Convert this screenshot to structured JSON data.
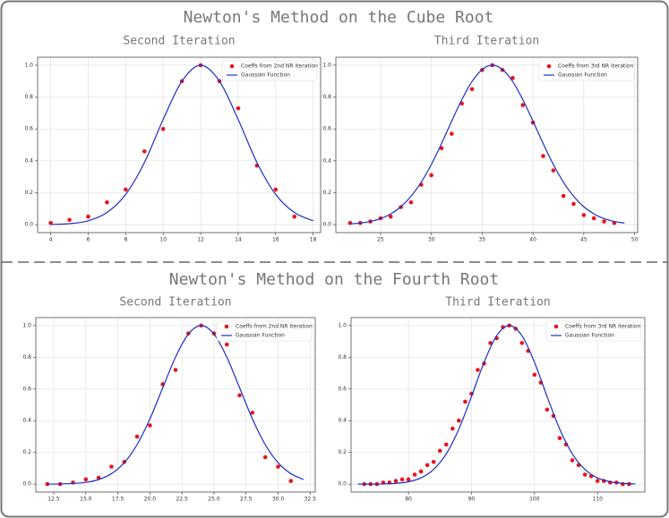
{
  "headings": [
    "Newton's Method on the Cube Root",
    "Newton's Method on the Fourth Root"
  ],
  "chart_data": [
    {
      "type": "scatter",
      "title": "Second Iteration",
      "xlim": [
        3.3,
        18.4
      ],
      "xticks": [
        4,
        6,
        8,
        10,
        12,
        14,
        16,
        18
      ],
      "ylim": [
        -0.05,
        1.05
      ],
      "yticks": [
        {
          "value": 0,
          "label": "0.0"
        },
        0.2,
        0.4,
        0.6,
        0.8,
        {
          "value": 1,
          "label": "1.0"
        }
      ],
      "grid": true,
      "legend": "upper right",
      "series": [
        {
          "name": "Coeffs from 2nd NR iteration",
          "color": "#e8141c",
          "type": "scatter",
          "x": [
            4,
            5,
            6,
            7,
            8,
            9,
            10,
            11,
            12,
            13,
            14,
            15,
            16,
            17
          ],
          "values": [
            0.01,
            0.03,
            0.05,
            0.14,
            0.22,
            0.46,
            0.6,
            0.9,
            1.0,
            0.9,
            0.73,
            0.37,
            0.22,
            0.05
          ]
        },
        {
          "name": "Gaussian Function",
          "color": "#1f2fc4",
          "type": "line",
          "x": [
            4,
            5,
            6,
            7,
            8,
            9,
            10,
            11,
            12,
            13,
            14,
            15,
            16,
            17,
            18
          ],
          "values": [
            0.001,
            0.006,
            0.024,
            0.076,
            0.19,
            0.39,
            0.66,
            0.9,
            1,
            0.9,
            0.66,
            0.39,
            0.19,
            0.076,
            0.024
          ]
        }
      ]
    },
    {
      "type": "scatter",
      "title": "Third Iteration",
      "xlim": [
        20.6,
        50.3
      ],
      "xticks": [
        25,
        30,
        35,
        40,
        45,
        50
      ],
      "ylim": [
        -0.05,
        1.05
      ],
      "yticks": [
        {
          "value": 0,
          "label": "0.0"
        },
        0.2,
        0.4,
        0.6,
        0.8,
        {
          "value": 1,
          "label": "1.0"
        }
      ],
      "grid": true,
      "legend": "upper right",
      "series": [
        {
          "name": "Coeffs from 3rd NR iteration",
          "color": "#e8141c",
          "type": "scatter",
          "x": [
            22,
            23,
            24,
            25,
            26,
            27,
            28,
            29,
            30,
            31,
            32,
            33,
            34,
            35,
            36,
            37,
            38,
            39,
            40,
            41,
            42,
            43,
            44,
            45,
            46,
            47,
            48
          ],
          "values": [
            0.01,
            0.01,
            0.02,
            0.04,
            0.05,
            0.11,
            0.14,
            0.25,
            0.31,
            0.48,
            0.57,
            0.76,
            0.85,
            0.97,
            1.0,
            0.97,
            0.92,
            0.75,
            0.64,
            0.43,
            0.34,
            0.18,
            0.13,
            0.06,
            0.04,
            0.02,
            0.01
          ]
        },
        {
          "name": "Gaussian Function",
          "color": "#1f2fc4",
          "type": "line",
          "x": [
            22,
            23,
            24,
            25,
            26,
            27,
            28,
            29,
            30,
            31,
            32,
            33,
            34,
            35,
            36,
            37,
            38,
            39,
            40,
            41,
            42,
            43,
            44,
            45,
            46,
            47,
            48,
            49
          ],
          "values": [
            0.005,
            0.01,
            0.02,
            0.038,
            0.067,
            0.112,
            0.178,
            0.266,
            0.378,
            0.509,
            0.649,
            0.784,
            0.898,
            0.973,
            1,
            0.973,
            0.898,
            0.784,
            0.649,
            0.509,
            0.378,
            0.266,
            0.178,
            0.112,
            0.067,
            0.038,
            0.02,
            0.01
          ]
        }
      ]
    },
    {
      "type": "scatter",
      "title": "Second Iteration",
      "xlim": [
        11.1,
        32.9
      ],
      "xticks": [
        12.5,
        {
          "value": 15,
          "label": "15.0"
        },
        17.5,
        {
          "value": 20,
          "label": "20.0"
        },
        22.5,
        {
          "value": 25,
          "label": "25.0"
        },
        27.5,
        {
          "value": 30,
          "label": "30.0"
        },
        32.5
      ],
      "ylim": [
        -0.05,
        1.05
      ],
      "yticks": [
        {
          "value": 0,
          "label": "0.0"
        },
        0.2,
        0.4,
        0.6,
        0.8,
        {
          "value": 1,
          "label": "1.0"
        }
      ],
      "grid": true,
      "legend": "upper right",
      "series": [
        {
          "name": "Coeffs from 2nd NR iteration",
          "color": "#e8141c",
          "type": "scatter",
          "x": [
            12,
            13,
            14,
            15,
            16,
            17,
            18,
            19,
            20,
            21,
            22,
            23,
            24,
            25,
            26,
            27,
            28,
            29,
            30,
            31
          ],
          "values": [
            0.0,
            0.0,
            0.01,
            0.03,
            0.04,
            0.11,
            0.14,
            0.3,
            0.37,
            0.63,
            0.72,
            0.95,
            1.0,
            0.95,
            0.88,
            0.56,
            0.45,
            0.17,
            0.11,
            0.02
          ]
        },
        {
          "name": "Gaussian Function",
          "color": "#1f2fc4",
          "type": "line",
          "x": [
            12,
            13,
            14,
            15,
            16,
            17,
            18,
            19,
            20,
            21,
            22,
            23,
            24,
            25,
            26,
            27,
            28,
            29,
            30,
            31,
            32
          ],
          "values": [
            0.0003,
            0.001,
            0.004,
            0.011,
            0.029,
            0.066,
            0.135,
            0.249,
            0.411,
            0.607,
            0.801,
            0.946,
            1,
            0.946,
            0.801,
            0.607,
            0.411,
            0.249,
            0.135,
            0.066,
            0.029
          ]
        }
      ]
    },
    {
      "type": "scatter",
      "title": "Third Iteration",
      "xlim": [
        70.9,
        117.5
      ],
      "xticks": [
        80,
        90,
        100,
        110
      ],
      "ylim": [
        -0.05,
        1.05
      ],
      "yticks": [
        {
          "value": 0,
          "label": "0.0"
        },
        0.2,
        0.4,
        0.6,
        0.8,
        {
          "value": 1,
          "label": "1.0"
        }
      ],
      "grid": true,
      "legend": "upper right",
      "series": [
        {
          "name": "Coeffs from 3rd NR iteration",
          "color": "#e8141c",
          "type": "scatter",
          "x": [
            73,
            74,
            75,
            76,
            77,
            78,
            79,
            80,
            81,
            82,
            83,
            84,
            85,
            86,
            87,
            88,
            89,
            90,
            91,
            92,
            93,
            94,
            95,
            96,
            97,
            98,
            99,
            100,
            101,
            102,
            103,
            104,
            105,
            106,
            107,
            108,
            109,
            110,
            111,
            112,
            113,
            114,
            115
          ],
          "values": [
            0.0,
            0.0,
            0.0,
            0.01,
            0.01,
            0.02,
            0.03,
            0.03,
            0.06,
            0.08,
            0.12,
            0.14,
            0.21,
            0.25,
            0.35,
            0.4,
            0.52,
            0.57,
            0.72,
            0.76,
            0.89,
            0.92,
            0.99,
            1.0,
            0.98,
            0.89,
            0.84,
            0.69,
            0.64,
            0.47,
            0.43,
            0.29,
            0.25,
            0.15,
            0.12,
            0.06,
            0.05,
            0.02,
            0.02,
            0.01,
            0.01,
            0.0,
            0.0
          ]
        },
        {
          "name": "Gaussian Function",
          "color": "#1f2fc4",
          "type": "line",
          "x": [
            72,
            74,
            76,
            78,
            80,
            82,
            84,
            86,
            88,
            90,
            92,
            94,
            96,
            98,
            100,
            102,
            104,
            106,
            108,
            110,
            112,
            114,
            116
          ],
          "values": [
            0,
            0,
            0.001,
            0.005,
            0.015,
            0.039,
            0.093,
            0.191,
            0.347,
            0.552,
            0.768,
            0.936,
            1,
            0.936,
            0.768,
            0.552,
            0.347,
            0.191,
            0.093,
            0.039,
            0.015,
            0.005,
            0.001
          ]
        }
      ]
    }
  ]
}
